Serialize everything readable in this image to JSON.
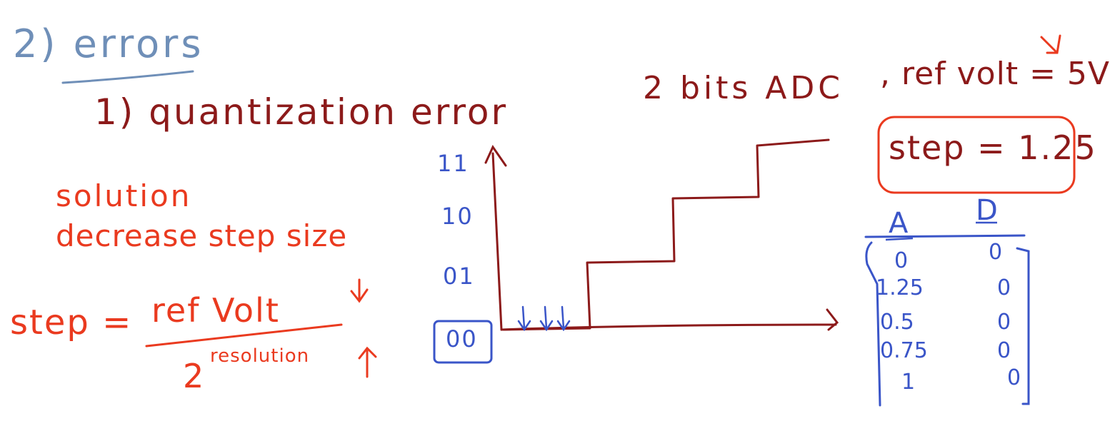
{
  "heading": "2) errors",
  "subheading": "1) quantization error",
  "solution": {
    "label": "solution",
    "text": "decrease step size"
  },
  "formula": {
    "lhs": "step =",
    "numerator": "ref Volt",
    "denominator_base": "2",
    "denominator_exp": "resolution"
  },
  "adc": {
    "title": "2 bits ADC",
    "ref": ", ref volt = 5V",
    "step": "step = 1.25"
  },
  "graph": {
    "y_ticks": [
      "11",
      "10",
      "01",
      "00"
    ]
  },
  "table": {
    "headers": [
      "A",
      "D"
    ],
    "rows": [
      [
        "0",
        "0"
      ],
      [
        "1.25",
        "0"
      ],
      [
        "0.5",
        "0"
      ],
      [
        "0.75",
        "0"
      ],
      [
        "1",
        "0"
      ]
    ]
  },
  "colors": {
    "heading": "#6f8fb8",
    "blue_ink": "#3a55c8",
    "red_ink": "#ea3a1f",
    "maroon_ink": "#8c1a1a"
  }
}
